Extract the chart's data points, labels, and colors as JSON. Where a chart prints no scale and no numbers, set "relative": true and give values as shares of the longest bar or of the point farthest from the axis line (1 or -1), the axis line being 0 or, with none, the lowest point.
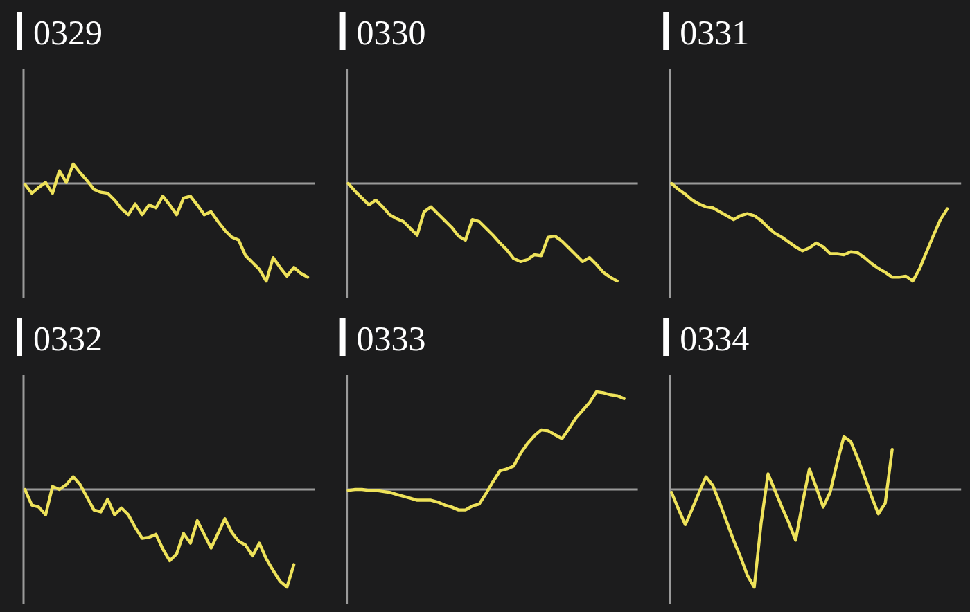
{
  "chart_data": [
    {
      "type": "line",
      "title": "0329",
      "relative": true,
      "color": "#eee25a",
      "categories": [
        null,
        null,
        null,
        null,
        null,
        null,
        null,
        null,
        null,
        null,
        null,
        null,
        null,
        null,
        null,
        null,
        null,
        null,
        null,
        null,
        null,
        null,
        null,
        null,
        null,
        null,
        null,
        null,
        null,
        null,
        null,
        null,
        null,
        null,
        null,
        null,
        null,
        null,
        null,
        null,
        null,
        null
      ],
      "values": [
        -0.01,
        -0.1,
        -0.04,
        0.01,
        -0.1,
        0.13,
        0.01,
        0.2,
        0.11,
        0.03,
        -0.06,
        -0.09,
        -0.1,
        -0.17,
        -0.26,
        -0.32,
        -0.21,
        -0.32,
        -0.22,
        -0.25,
        -0.13,
        -0.22,
        -0.32,
        -0.15,
        -0.13,
        -0.22,
        -0.32,
        -0.29,
        -0.39,
        -0.48,
        -0.55,
        -0.58,
        -0.74,
        -0.81,
        -0.88,
        -1,
        -0.76,
        -0.86,
        -0.95,
        -0.86,
        -0.92,
        -0.96
      ]
    },
    {
      "type": "line",
      "title": "0330",
      "relative": true,
      "color": "#eee25a",
      "categories": [
        null,
        null,
        null,
        null,
        null,
        null,
        null,
        null,
        null,
        null,
        null,
        null,
        null,
        null,
        null,
        null,
        null,
        null,
        null,
        null,
        null,
        null,
        null,
        null,
        null,
        null,
        null,
        null,
        null,
        null,
        null,
        null,
        null,
        null,
        null,
        null,
        null,
        null,
        null,
        null,
        null,
        null
      ],
      "values": [
        0,
        -0.08,
        -0.15,
        -0.22,
        -0.17,
        -0.24,
        -0.32,
        -0.36,
        -0.39,
        -0.46,
        -0.53,
        -0.29,
        -0.24,
        -0.31,
        -0.38,
        -0.45,
        -0.54,
        -0.58,
        -0.37,
        -0.39,
        -0.46,
        -0.53,
        -0.61,
        -0.68,
        -0.77,
        -0.8,
        -0.78,
        -0.73,
        -0.74,
        -0.55,
        -0.54,
        -0.59,
        -0.66,
        -0.73,
        -0.8,
        -0.76,
        -0.83,
        -0.91,
        -0.96,
        -1,
        null,
        null
      ]
    },
    {
      "type": "line",
      "title": "0331",
      "relative": true,
      "color": "#eee25a",
      "categories": [
        null,
        null,
        null,
        null,
        null,
        null,
        null,
        null,
        null,
        null,
        null,
        null,
        null,
        null,
        null,
        null,
        null,
        null,
        null,
        null,
        null,
        null,
        null,
        null,
        null,
        null,
        null,
        null,
        null,
        null,
        null,
        null,
        null,
        null,
        null,
        null,
        null,
        null,
        null,
        null,
        null,
        null
      ],
      "values": [
        0,
        -0.06,
        -0.11,
        -0.17,
        -0.21,
        -0.24,
        -0.25,
        -0.29,
        -0.33,
        -0.37,
        -0.33,
        -0.31,
        -0.33,
        -0.38,
        -0.45,
        -0.51,
        -0.55,
        -0.6,
        -0.65,
        -0.69,
        -0.66,
        -0.61,
        -0.65,
        -0.72,
        -0.72,
        -0.73,
        -0.7,
        -0.71,
        -0.76,
        -0.82,
        -0.87,
        -0.91,
        -0.96,
        -0.96,
        -0.95,
        -1,
        -0.87,
        -0.7,
        -0.53,
        -0.37,
        -0.26,
        null
      ]
    },
    {
      "type": "line",
      "title": "0332",
      "relative": true,
      "color": "#eee25a",
      "categories": [
        null,
        null,
        null,
        null,
        null,
        null,
        null,
        null,
        null,
        null,
        null,
        null,
        null,
        null,
        null,
        null,
        null,
        null,
        null,
        null,
        null,
        null,
        null,
        null,
        null,
        null,
        null,
        null,
        null,
        null,
        null,
        null,
        null,
        null,
        null,
        null,
        null,
        null,
        null,
        null,
        null,
        null
      ],
      "values": [
        0,
        -0.16,
        -0.18,
        -0.26,
        0.03,
        0,
        0.05,
        0.13,
        0.05,
        -0.08,
        -0.21,
        -0.23,
        -0.1,
        -0.26,
        -0.19,
        -0.26,
        -0.39,
        -0.5,
        -0.49,
        -0.46,
        -0.61,
        -0.73,
        -0.66,
        -0.45,
        -0.55,
        -0.32,
        -0.46,
        -0.6,
        -0.45,
        -0.3,
        -0.44,
        -0.53,
        -0.57,
        -0.68,
        -0.55,
        -0.71,
        -0.83,
        -0.94,
        -1,
        -0.77,
        null,
        null
      ]
    },
    {
      "type": "line",
      "title": "0333",
      "relative": true,
      "color": "#eee25a",
      "categories": [
        null,
        null,
        null,
        null,
        null,
        null,
        null,
        null,
        null,
        null,
        null,
        null,
        null,
        null,
        null,
        null,
        null,
        null,
        null,
        null,
        null,
        null,
        null,
        null,
        null,
        null,
        null,
        null,
        null,
        null,
        null,
        null,
        null,
        null,
        null,
        null,
        null,
        null,
        null,
        null,
        null,
        null
      ],
      "values": [
        -0.01,
        0,
        0,
        -0.01,
        -0.01,
        -0.02,
        -0.03,
        -0.05,
        -0.07,
        -0.09,
        -0.11,
        -0.11,
        -0.11,
        -0.13,
        -0.16,
        -0.18,
        -0.21,
        -0.21,
        -0.17,
        -0.15,
        -0.04,
        0.08,
        0.19,
        0.21,
        0.24,
        0.37,
        0.47,
        0.55,
        0.61,
        0.6,
        0.56,
        0.52,
        0.62,
        0.73,
        0.81,
        0.89,
        1,
        0.99,
        0.97,
        0.96,
        0.93,
        null
      ]
    },
    {
      "type": "line",
      "title": "0334",
      "relative": true,
      "color": "#eee25a",
      "categories": [
        null,
        null,
        null,
        null,
        null,
        null,
        null,
        null,
        null,
        null,
        null,
        null,
        null,
        null,
        null,
        null,
        null,
        null,
        null,
        null,
        null,
        null,
        null,
        null,
        null,
        null,
        null,
        null,
        null,
        null,
        null,
        null,
        null,
        null,
        null,
        null,
        null,
        null,
        null,
        null,
        null,
        null
      ],
      "values": [
        -0.03,
        -0.2,
        -0.36,
        -0.2,
        -0.03,
        0.13,
        0.04,
        -0.14,
        -0.33,
        -0.52,
        -0.69,
        -0.88,
        -1,
        -0.34,
        0.16,
        -0.01,
        -0.18,
        -0.34,
        -0.52,
        -0.14,
        0.21,
        0.02,
        -0.18,
        -0.03,
        0.27,
        0.54,
        0.49,
        0.32,
        0.13,
        -0.07,
        -0.25,
        -0.14,
        0.41,
        null,
        null,
        null,
        null,
        null,
        null,
        null,
        null,
        null
      ]
    }
  ]
}
